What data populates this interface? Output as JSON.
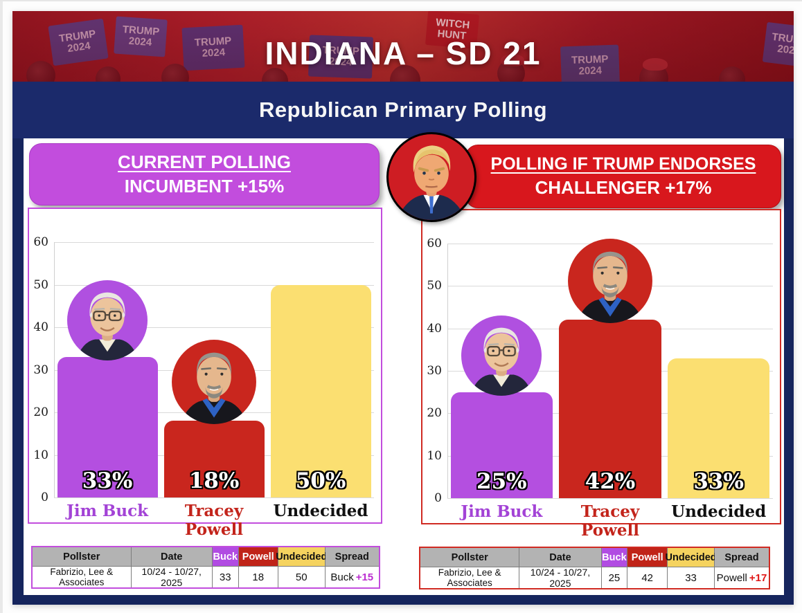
{
  "banner": {
    "title": "INDIANA – SD 21",
    "signs": [
      "TRUMP 2024",
      "TRUMP 2024",
      "TRUMP 2024",
      "TRUMP 2024",
      "WITCH HUNT",
      "TRUMP 2024",
      "TRUMP 2024"
    ]
  },
  "subtitle": "Republican Primary Polling",
  "panels": [
    {
      "line1": "CURRENT POLLING",
      "line2": "INCUMBENT +15%",
      "accent": "#c24ddd"
    },
    {
      "line1": "POLLING IF TRUMP ENDORSES",
      "line2": "CHALLENGER +17%",
      "accent": "#d8171d"
    }
  ],
  "chart_data": [
    {
      "type": "bar",
      "title": "CURRENT POLLING — INCUMBENT +15%",
      "categories": [
        "Jim Buck",
        "Tracey Powell",
        "Undecided"
      ],
      "values": [
        33,
        18,
        50
      ],
      "bar_labels": [
        "33%",
        "18%",
        "50%"
      ],
      "bar_colors": [
        "#b44fe0",
        "#c9261e",
        "#fbdf71"
      ],
      "category_colors": [
        "#a343d6",
        "#c3241b",
        "#111111"
      ],
      "avatars": [
        "buck",
        "powell",
        null
      ],
      "xlabel": "",
      "ylabel": "",
      "ylim": [
        0,
        65
      ],
      "yticks": [
        0,
        10,
        20,
        30,
        40,
        50,
        60
      ],
      "grid": true,
      "legend": false
    },
    {
      "type": "bar",
      "title": "POLLING IF TRUMP ENDORSES — CHALLENGER +17%",
      "categories": [
        "Jim Buck",
        "Tracey Powell",
        "Undecided"
      ],
      "values": [
        25,
        42,
        33
      ],
      "bar_labels": [
        "25%",
        "42%",
        "33%"
      ],
      "bar_colors": [
        "#b44fe0",
        "#c9261e",
        "#fbdf71"
      ],
      "category_colors": [
        "#a343d6",
        "#c3241b",
        "#111111"
      ],
      "avatars": [
        "buck",
        "powell",
        null
      ],
      "xlabel": "",
      "ylabel": "",
      "ylim": [
        0,
        65
      ],
      "yticks": [
        0,
        10,
        20,
        30,
        40,
        50,
        60
      ],
      "grid": true,
      "legend": false
    }
  ],
  "table_columns": [
    "Pollster",
    "Date",
    "Buck",
    "Powell",
    "Undecided",
    "Spread"
  ],
  "tables": [
    {
      "pollster": "Fabrizio, Lee & Associates",
      "date": "10/24 - 10/27, 2025",
      "buck": "33",
      "powell": "18",
      "undecided": "50",
      "spread_name": "Buck",
      "spread_delta": "+15",
      "spread_color": "#bb2fd0"
    },
    {
      "pollster": "Fabrizio, Lee & Associates",
      "date": "10/24 - 10/27, 2025",
      "buck": "25",
      "powell": "42",
      "undecided": "33",
      "spread_name": "Powell",
      "spread_delta": "+17",
      "spread_color": "#e01616"
    }
  ],
  "colors": {
    "navy_frame": "#16255d",
    "title_band": "#1b2a6b",
    "purple": "#c24ddd",
    "red": "#d8171d",
    "yellow": "#fbdf71",
    "table_header_gray": "#b3b3b3",
    "gridline": "#d9d9d9"
  }
}
